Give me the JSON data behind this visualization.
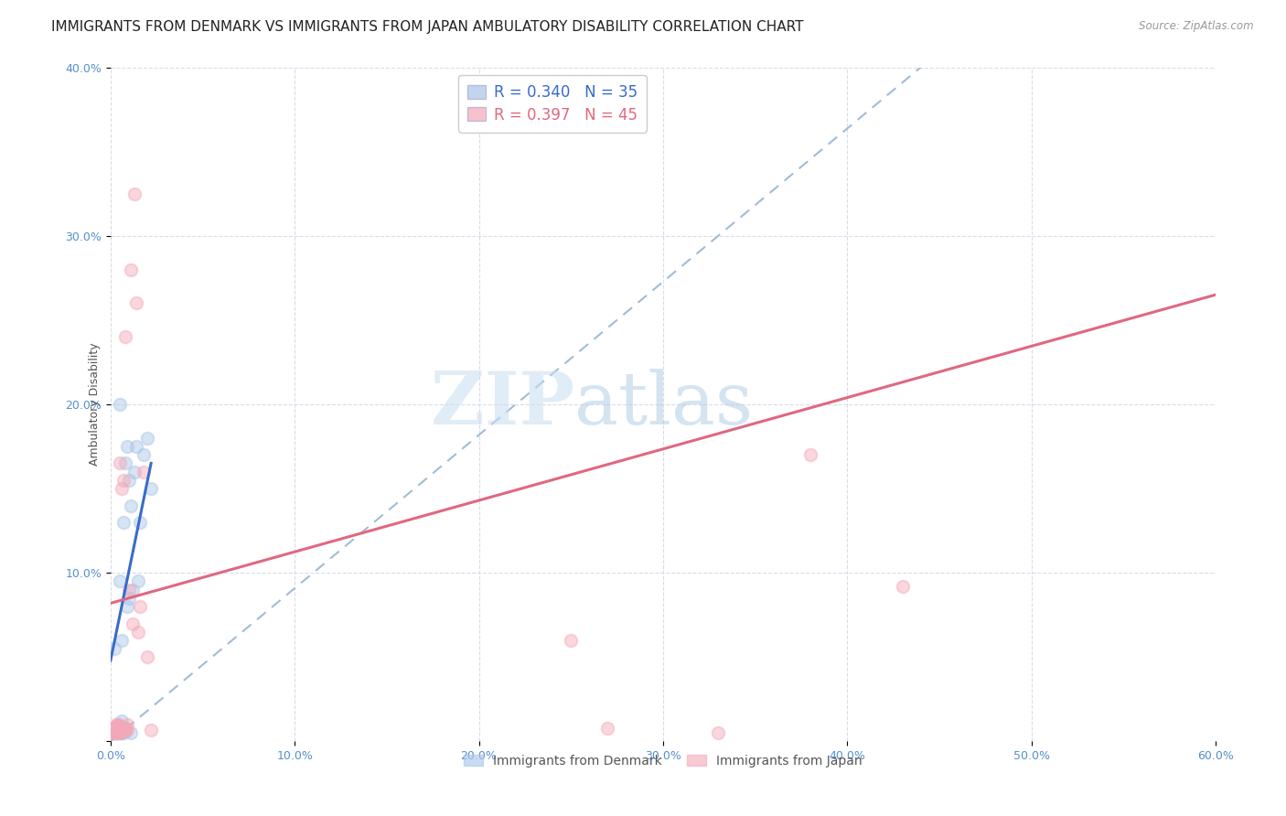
{
  "title": "IMMIGRANTS FROM DENMARK VS IMMIGRANTS FROM JAPAN AMBULATORY DISABILITY CORRELATION CHART",
  "source": "Source: ZipAtlas.com",
  "ylabel": "Ambulatory Disability",
  "xlim": [
    0,
    0.6
  ],
  "ylim": [
    0,
    0.4
  ],
  "xticks": [
    0.0,
    0.1,
    0.2,
    0.3,
    0.4,
    0.5,
    0.6
  ],
  "yticks": [
    0.0,
    0.1,
    0.2,
    0.3,
    0.4
  ],
  "denmark_color": "#a8c4e8",
  "japan_color": "#f4a8b8",
  "denmark_line_color": "#3a6bc8",
  "japan_line_color": "#e06880",
  "reference_line_color": "#a0bcd8",
  "watermark_zip": "ZIP",
  "watermark_atlas": "atlas",
  "legend_dk_r": "R = 0.340",
  "legend_dk_n": "N = 35",
  "legend_jp_r": "R = 0.397",
  "legend_jp_n": "N = 45",
  "legend_label_dk": "Immigrants from Denmark",
  "legend_label_jp": "Immigrants from Japan",
  "background_color": "#ffffff",
  "grid_color": "#d8dce8",
  "title_fontsize": 11,
  "axis_label_fontsize": 9,
  "tick_fontsize": 9,
  "marker_size": 95,
  "marker_alpha": 0.45,
  "denmark_x": [
    0.001,
    0.002,
    0.002,
    0.003,
    0.003,
    0.004,
    0.004,
    0.004,
    0.005,
    0.005,
    0.005,
    0.005,
    0.006,
    0.006,
    0.006,
    0.006,
    0.007,
    0.007,
    0.007,
    0.008,
    0.008,
    0.009,
    0.009,
    0.01,
    0.01,
    0.011,
    0.011,
    0.012,
    0.013,
    0.014,
    0.015,
    0.016,
    0.018,
    0.02,
    0.022
  ],
  "denmark_y": [
    0.005,
    0.005,
    0.055,
    0.005,
    0.007,
    0.005,
    0.007,
    0.01,
    0.005,
    0.008,
    0.095,
    0.2,
    0.005,
    0.008,
    0.012,
    0.06,
    0.005,
    0.008,
    0.13,
    0.008,
    0.165,
    0.08,
    0.175,
    0.085,
    0.155,
    0.005,
    0.14,
    0.09,
    0.16,
    0.175,
    0.095,
    0.13,
    0.17,
    0.18,
    0.15
  ],
  "japan_x": [
    0.001,
    0.001,
    0.001,
    0.002,
    0.002,
    0.002,
    0.003,
    0.003,
    0.003,
    0.003,
    0.004,
    0.004,
    0.004,
    0.004,
    0.004,
    0.005,
    0.005,
    0.005,
    0.005,
    0.005,
    0.006,
    0.006,
    0.006,
    0.007,
    0.007,
    0.008,
    0.008,
    0.008,
    0.009,
    0.009,
    0.01,
    0.011,
    0.012,
    0.013,
    0.014,
    0.015,
    0.016,
    0.018,
    0.02,
    0.022,
    0.25,
    0.27,
    0.33,
    0.38,
    0.43
  ],
  "japan_y": [
    0.005,
    0.006,
    0.008,
    0.005,
    0.006,
    0.008,
    0.005,
    0.006,
    0.007,
    0.01,
    0.005,
    0.006,
    0.007,
    0.009,
    0.01,
    0.005,
    0.006,
    0.008,
    0.009,
    0.165,
    0.006,
    0.008,
    0.15,
    0.008,
    0.155,
    0.006,
    0.008,
    0.24,
    0.007,
    0.01,
    0.09,
    0.28,
    0.07,
    0.325,
    0.26,
    0.065,
    0.08,
    0.16,
    0.05,
    0.007,
    0.06,
    0.008,
    0.005,
    0.17,
    0.092
  ],
  "jp_trend_x0": 0.0,
  "jp_trend_y0": 0.082,
  "jp_trend_x1": 0.6,
  "jp_trend_y1": 0.265,
  "dk_trend_x0": 0.0,
  "dk_trend_y0": 0.048,
  "dk_trend_x1": 0.022,
  "dk_trend_y1": 0.165
}
